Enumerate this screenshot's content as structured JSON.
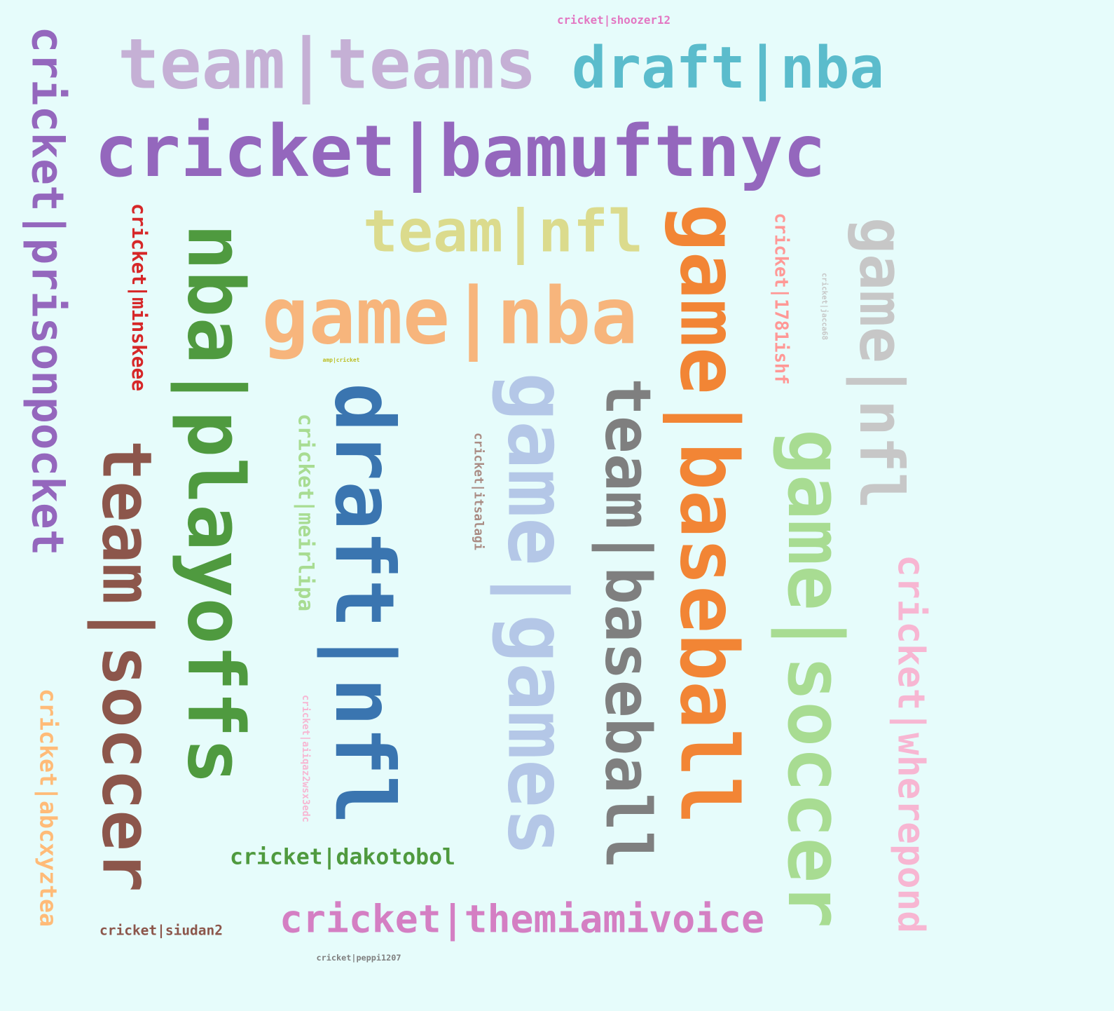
{
  "words": [
    {
      "text": "cricket|shoozer12",
      "color": "#e377c2",
      "vertical": false
    },
    {
      "text": "team|teams",
      "color": "#c5b0d5",
      "vertical": false
    },
    {
      "text": "draft|nba",
      "color": "#5bbccc",
      "vertical": false
    },
    {
      "text": "cricket|bamuftnyc",
      "color": "#9467bd",
      "vertical": false
    },
    {
      "text": "cricket|prisonpocket",
      "color": "#9467bd",
      "vertical": true
    },
    {
      "text": "cricket|minskeee",
      "color": "#d62728",
      "vertical": true
    },
    {
      "text": "nba|playoffs",
      "color": "#4f9a3f",
      "vertical": true
    },
    {
      "text": "team|nfl",
      "color": "#dbdb8d",
      "vertical": false
    },
    {
      "text": "game|nba",
      "color": "#f7b57c",
      "vertical": false
    },
    {
      "text": "game|baseball",
      "color": "#f28535",
      "vertical": true
    },
    {
      "text": "cricket|1781ishf",
      "color": "#ff9896",
      "vertical": true
    },
    {
      "text": "game|nfl",
      "color": "#c7c7c7",
      "vertical": true
    },
    {
      "text": "cricket|jacca68",
      "color": "#c7c7c7",
      "vertical": true
    },
    {
      "text": "amp|cricket",
      "color": "#bcbd22",
      "vertical": false
    },
    {
      "text": "draft|nfl",
      "color": "#3a75b0",
      "vertical": true
    },
    {
      "text": "cricket|meirlipa",
      "color": "#a8dc92",
      "vertical": true
    },
    {
      "text": "cricket|itsalagi",
      "color": "#aa8c84",
      "vertical": true
    },
    {
      "text": "game|games",
      "color": "#b4c7e7",
      "vertical": true
    },
    {
      "text": "team|baseball",
      "color": "#7f7f7f",
      "vertical": true
    },
    {
      "text": "game|soccer",
      "color": "#a8dc92",
      "vertical": true
    },
    {
      "text": "cricket|wherepond",
      "color": "#f7b6d2",
      "vertical": true
    },
    {
      "text": "team|soccer",
      "color": "#8c564b",
      "vertical": true
    },
    {
      "text": "cricket|abcxyztea",
      "color": "#ffbb78",
      "vertical": true
    },
    {
      "text": "cricket|aiiqaz2wsx3edc",
      "color": "#f7b6d2",
      "vertical": true
    },
    {
      "text": "cricket|dakotobol",
      "color": "#4f9a3f",
      "vertical": false
    },
    {
      "text": "cricket|themiamivoice",
      "color": "#d47fc3",
      "vertical": false
    },
    {
      "text": "cricket|siudan2",
      "color": "#8c564b",
      "vertical": false
    },
    {
      "text": "cricket|peppi1207",
      "color": "#7f7f7f",
      "vertical": false
    }
  ]
}
